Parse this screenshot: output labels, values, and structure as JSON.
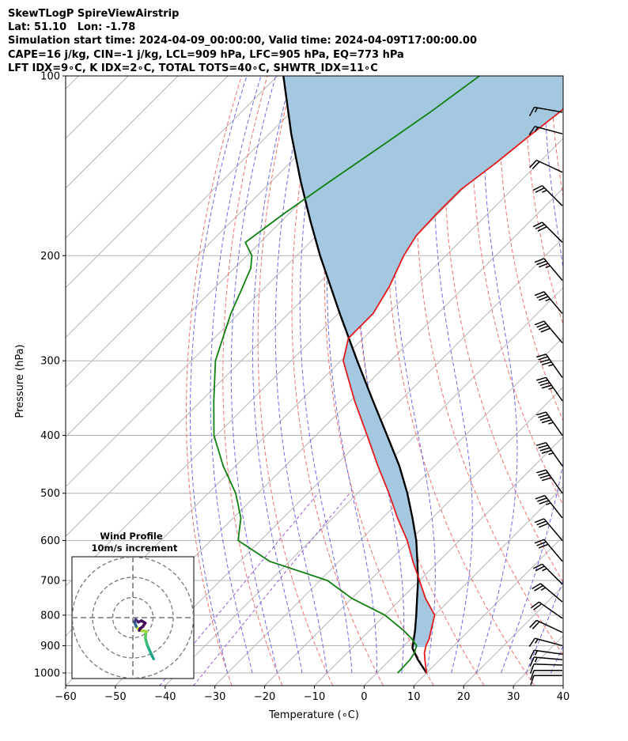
{
  "header": {
    "line1": "SkewTLogP SpireViewAirstrip",
    "line2": "Lat: 51.10   Lon: -1.78",
    "line3": "Simulation start time: 2024-04-09_00:00:00, Valid time: 2024-04-09T17:00:00.00",
    "line4": "CAPE=16 j/kg, CIN=-1 j/kg, LCL=909 hPa, LFC=905 hPa, EQ=773 hPa",
    "line5": "LFT IDX=9∘C, K IDX=2∘C, TOTAL TOTS=40∘C, SHWTR_IDX=11∘C"
  },
  "chart_data": {
    "type": "line",
    "subtype": "skew-T log-P",
    "xlabel": "Temperature (∘C)",
    "ylabel": "Pressure (hPa)",
    "xlim": [
      -60,
      40
    ],
    "ylim": [
      1050,
      100
    ],
    "y_scale": "log",
    "x_ticks": [
      "−60",
      "−50",
      "−40",
      "−30",
      "−20",
      "−10",
      "0",
      "10",
      "20",
      "30",
      "40"
    ],
    "y_ticks": [
      "100",
      "200",
      "300",
      "400",
      "500",
      "600",
      "700",
      "800",
      "900",
      "1000"
    ],
    "grid": true,
    "colors": {
      "temperature": "#e41a1c",
      "dewpoint": "#108010",
      "parcel": "#000000",
      "cape_fill": "#a4c8e0",
      "dry_adiabat": "#f07070",
      "moist_adiabat": "#6a6ae8",
      "mixing_ratio": "#9b59d0",
      "isotherm": "#b4b4b4"
    },
    "series": [
      {
        "name": "Temperature",
        "pressure": [
          1000,
          950,
          925,
          900,
          875,
          850,
          800,
          750,
          700,
          650,
          600,
          550,
          500,
          450,
          400,
          350,
          300,
          275,
          250,
          225,
          200,
          185,
          170,
          155,
          140,
          125,
          115,
          105,
          100
        ],
        "values": [
          10,
          7,
          5.5,
          4.4,
          3.6,
          2.4,
          0,
          -5.2,
          -10,
          -15.2,
          -20.5,
          -27,
          -33.7,
          -41.4,
          -49.7,
          -59.2,
          -69.5,
          -73,
          -73,
          -75.2,
          -78.5,
          -80,
          -80.3,
          -80.3,
          -78.6,
          -77.2,
          -76,
          -75.4,
          -75.1
        ]
      },
      {
        "name": "Dewpoint",
        "pressure": [
          1000,
          950,
          925,
          900,
          875,
          850,
          800,
          750,
          700,
          650,
          600,
          550,
          500,
          450,
          400,
          350,
          300,
          250,
          230,
          210,
          200,
          190,
          170,
          150,
          130,
          115,
          100
        ],
        "values": [
          4.2,
          4,
          3.5,
          2.5,
          0,
          -3,
          -10,
          -20,
          -28.5,
          -44,
          -54.5,
          -58.5,
          -64.5,
          -72.5,
          -80.5,
          -87.5,
          -95.2,
          -101.6,
          -104,
          -106.7,
          -109,
          -113,
          -111,
          -108.2,
          -104.8,
          -102,
          -99.4
        ]
      },
      {
        "name": "Parcel",
        "pressure": [
          1000,
          950,
          909,
          850,
          800,
          750,
          700,
          650,
          600,
          550,
          500,
          450,
          400,
          350,
          300,
          250,
          200,
          175,
          150,
          125,
          100
        ],
        "values": [
          10,
          5.6,
          2.2,
          -0.8,
          -3.7,
          -6.9,
          -10.3,
          -14.3,
          -18.7,
          -24,
          -30,
          -37.1,
          -45.7,
          -55.5,
          -66.7,
          -79.7,
          -95.3,
          -104.2,
          -114.2,
          -125.6,
          -138.8
        ]
      }
    ],
    "wind_barbs": {
      "pressure": [
        1010,
        990,
        970,
        950,
        930,
        900,
        855,
        810,
        760,
        710,
        650,
        600,
        550,
        500,
        450,
        400,
        350,
        320,
        280,
        250,
        220,
        190,
        165,
        145,
        125,
        115
      ],
      "speed_kt": [
        10,
        10,
        10,
        15,
        15,
        15,
        20,
        20,
        25,
        25,
        30,
        30,
        35,
        40,
        45,
        45,
        45,
        45,
        40,
        35,
        35,
        30,
        25,
        20,
        15,
        15
      ],
      "direction_deg": [
        270,
        270,
        272,
        275,
        278,
        285,
        295,
        305,
        310,
        315,
        320,
        320,
        322,
        325,
        325,
        325,
        325,
        325,
        320,
        320,
        320,
        315,
        315,
        295,
        285,
        280
      ]
    },
    "hodograph": {
      "title": "Wind Profile",
      "subtitle": "10m/s increment",
      "rings_ms": [
        10,
        20,
        30
      ],
      "u": [
        15.8,
        13.5,
        11,
        9.5,
        10,
        10.4,
        5.2,
        2.5,
        1.2,
        2.2,
        4.2,
        6.6,
        9.4,
        7.6,
        5.5,
        4.8
      ],
      "v": [
        -31.5,
        -26.7,
        -21,
        -15.5,
        -11.5,
        -10.5,
        -9.8,
        -6.8,
        -3.2,
        -1.5,
        -3.4,
        -2.4,
        -4.1,
        -6.8,
        -8.4,
        -9.8
      ]
    },
    "cape_region": "shaded between parcel and temperature from ~905 hPa to top"
  }
}
